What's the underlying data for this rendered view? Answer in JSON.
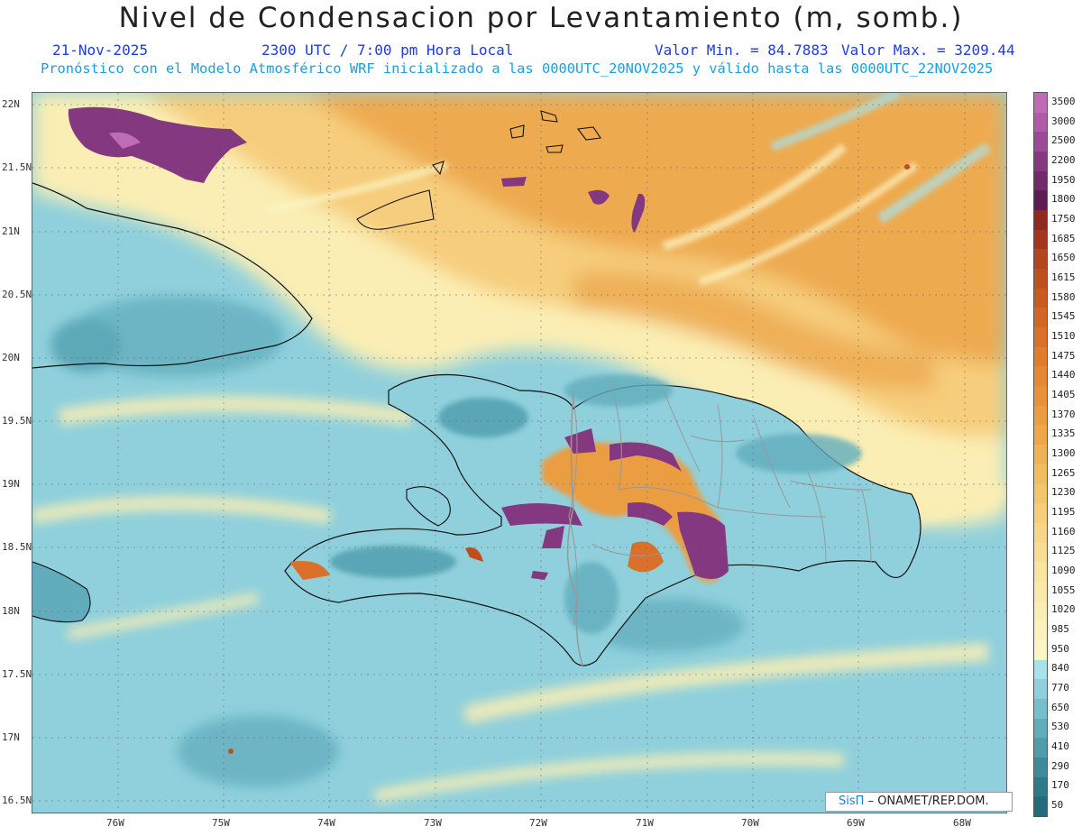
{
  "header": {
    "title": "Nivel de Condensacion por Levantamiento (m, somb.)",
    "date": "21-Nov-2025",
    "time": "2300 UTC / 7:00 pm Hora Local",
    "min_label": "Valor Min. = 84.7883",
    "max_label": "Valor Max. = 3209.44",
    "model_line": "Pronóstico con el Modelo Atmosférico WRF inicializado a las 0000UTC_20NOV2025 y válido hasta las  0000UTC_22NOV2025"
  },
  "axes": {
    "lat_labels": [
      "22N",
      "21.5N",
      "21N",
      "20.5N",
      "20N",
      "19.5N",
      "19N",
      "18.5N",
      "18N",
      "17.5N",
      "17N",
      "16.5N"
    ],
    "lon_labels": [
      "76W",
      "75W",
      "74W",
      "73W",
      "72W",
      "71W",
      "70W",
      "69W",
      "68W"
    ]
  },
  "colorbar": {
    "labels": [
      "3500",
      "3000",
      "2500",
      "2200",
      "1950",
      "1800",
      "1750",
      "1685",
      "1650",
      "1615",
      "1580",
      "1545",
      "1510",
      "1475",
      "1440",
      "1405",
      "1370",
      "1335",
      "1300",
      "1265",
      "1230",
      "1195",
      "1160",
      "1125",
      "1090",
      "1055",
      "1020",
      "985",
      "950",
      "840",
      "770",
      "650",
      "530",
      "410",
      "290",
      "170",
      "50"
    ],
    "colors": [
      "#c06bb6",
      "#b05aa8",
      "#9a4a98",
      "#84387f",
      "#722a6a",
      "#5e1d52",
      "#8f2a1f",
      "#a3361c",
      "#b3451f",
      "#c04f20",
      "#c95a22",
      "#d36526",
      "#da702a",
      "#df7c2e",
      "#e38834",
      "#e7923a",
      "#eb9d42",
      "#ee a84b",
      "#f0b257",
      "#f2bc63",
      "#f4c56f",
      "#f6cd7c",
      "#f7d689",
      "#f8dd95",
      "#f9e4a0",
      "#fae9aa",
      "#fbeeb4",
      "#fcf2bd",
      "#fcf5c6",
      "#a8e2ea",
      "#8fd0dc",
      "#77bfcd",
      "#62adbd",
      "#4e9cad",
      "#3c8b9c",
      "#2d7a8b",
      "#226c7e"
    ]
  },
  "map": {
    "ocean_color": "#8fd0dc",
    "land_border_color": "#111111",
    "province_color": "#999999"
  },
  "credit": {
    "logo": "SisΠ",
    "org": "– ONAMET/REP.DOM."
  }
}
